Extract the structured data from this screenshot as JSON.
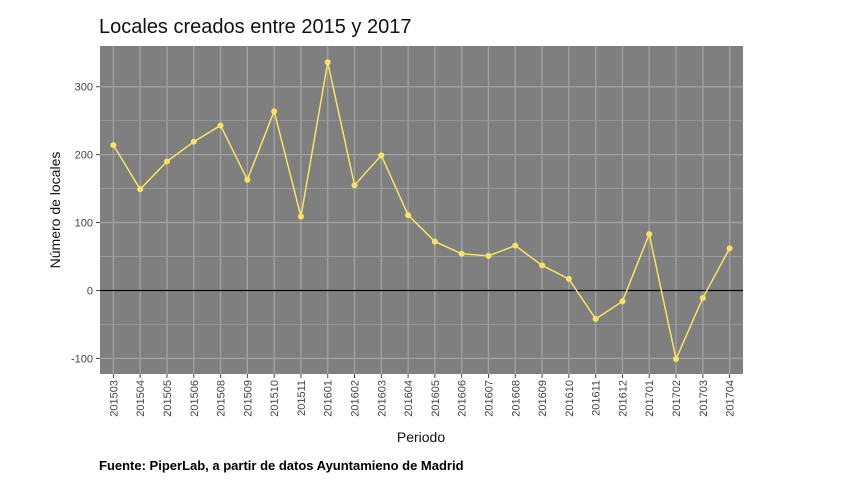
{
  "chart_data": {
    "type": "line",
    "title": "Locales creados entre 2015 y 2017",
    "xlabel": "Periodo",
    "ylabel": "Número de locales",
    "categories": [
      "201503",
      "201504",
      "201505",
      "201506",
      "201508",
      "201509",
      "201510",
      "201511",
      "201601",
      "201602",
      "201603",
      "201604",
      "201605",
      "201606",
      "201607",
      "201608",
      "201609",
      "201610",
      "201611",
      "201612",
      "201701",
      "201702",
      "201703",
      "201704"
    ],
    "series": [
      {
        "values": [
          214,
          149,
          190,
          219,
          243,
          163,
          264,
          109,
          336,
          155,
          199,
          111,
          72,
          54,
          51,
          66,
          37,
          17,
          -42,
          -16,
          83,
          -101,
          -11,
          62
        ]
      }
    ],
    "ylim": [
      -123,
      360
    ],
    "yticks": [
      -100,
      0,
      100,
      200,
      300
    ],
    "grid": true,
    "reference_line": 0,
    "colors": {
      "panel": "#7f7f7f",
      "grid": "#a3a3a3",
      "line": "#f7e463",
      "zero_line": "#000000"
    }
  },
  "source_note": "Fuente: PiperLab, a partir de datos Ayuntamieno de Madrid"
}
